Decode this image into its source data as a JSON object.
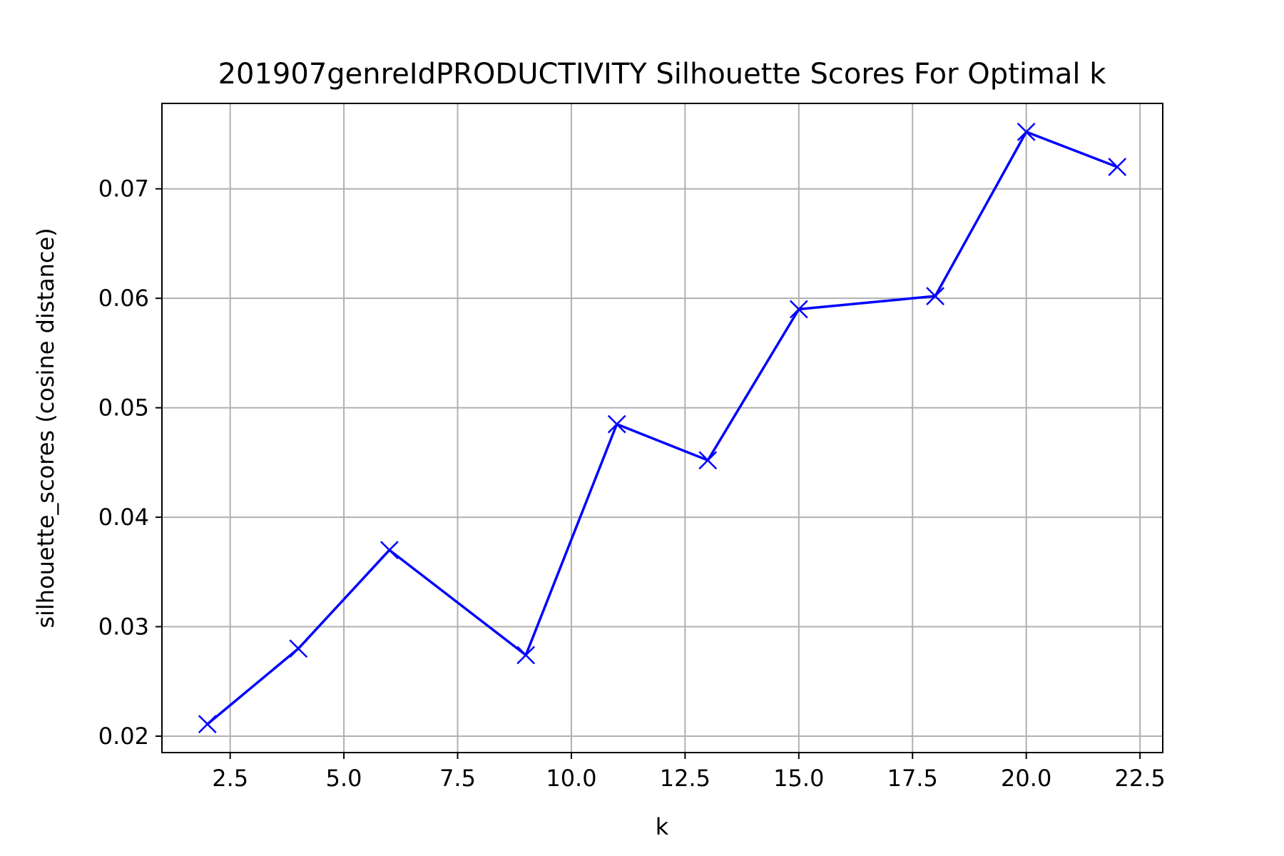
{
  "chart_data": {
    "type": "line",
    "title": "201907genreIdPRODUCTIVITY Silhouette Scores For Optimal k",
    "xlabel": "k",
    "ylabel": "silhouette_scores (cosine distance)",
    "xlim": [
      1.0,
      23.0
    ],
    "ylim": [
      0.0185,
      0.0778
    ],
    "xticks": [
      2.5,
      5.0,
      7.5,
      10.0,
      12.5,
      15.0,
      17.5,
      20.0,
      22.5
    ],
    "xtick_labels": [
      "2.5",
      "5.0",
      "7.5",
      "10.0",
      "12.5",
      "15.0",
      "17.5",
      "20.0",
      "22.5"
    ],
    "yticks": [
      0.02,
      0.03,
      0.04,
      0.05,
      0.06,
      0.07
    ],
    "ytick_labels": [
      "0.02",
      "0.03",
      "0.04",
      "0.05",
      "0.06",
      "0.07"
    ],
    "grid": true,
    "series": [
      {
        "color": "#0000ff",
        "marker": "x",
        "x": [
          2,
          4,
          6,
          9,
          11,
          13,
          15,
          18,
          20,
          22
        ],
        "y": [
          0.0211,
          0.028,
          0.037,
          0.0274,
          0.0485,
          0.0452,
          0.059,
          0.0602,
          0.0752,
          0.072
        ]
      }
    ]
  }
}
